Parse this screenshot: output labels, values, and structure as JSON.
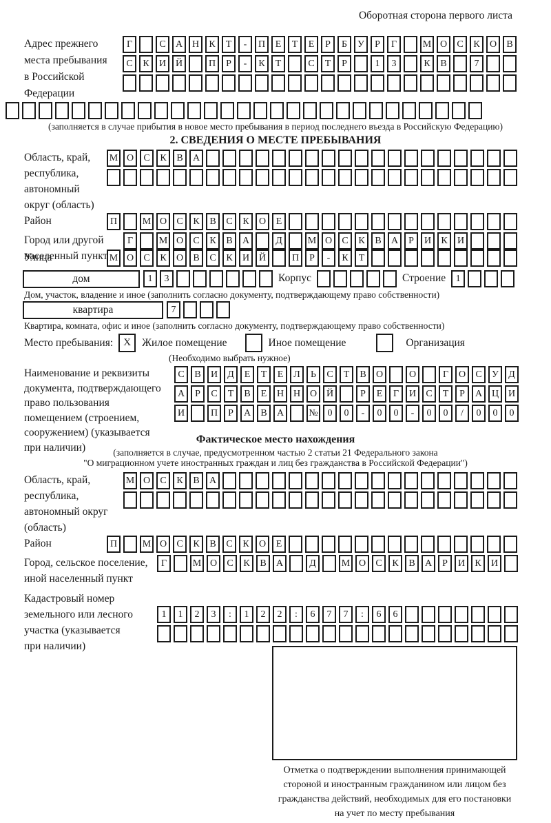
{
  "page": {
    "header_note": "Оборотная сторона первого листа"
  },
  "prev_address": {
    "label": [
      "Адрес прежнего",
      "места пребывания",
      "в Российской",
      "Федерации"
    ],
    "rows": [
      {
        "text": "Г САНКТ-ПЕТЕРБУРГ МОСКОВ",
        "count": 24
      },
      {
        "text": "СКИЙ ПР-КТ СТР 13 КВ 7",
        "count": 24
      },
      {
        "text": "",
        "count": 24
      }
    ],
    "row_full": {
      "text": "",
      "count": 29
    },
    "note": "(заполняется в случае прибытия в новое место пребывания в период последнего въезда в Российскую Федерацию)"
  },
  "section2": {
    "title": "2. СВЕДЕНИЯ О МЕСТЕ ПРЕБЫВАНИЯ",
    "oblast": {
      "label": [
        "Область, край,",
        "республика,",
        "автономный",
        "округ (область)"
      ],
      "rows": [
        {
          "text": "МОСКВА",
          "count": 25
        },
        {
          "text": "",
          "count": 25
        }
      ]
    },
    "raion": {
      "label": "Район",
      "row": {
        "text": "П МОСКВСКОЕ",
        "count": 25
      }
    },
    "gorod": {
      "label": [
        "Город или другой",
        "населенный пункт"
      ],
      "row": {
        "text": "Г МОСКВА Д МОСКВАРИКИ",
        "count": 24
      }
    },
    "ulitsa": {
      "label": "Улица",
      "row": {
        "text": "МОСКОВСКИЙ ПР-КТ",
        "count": 25
      }
    },
    "dom": {
      "label": "дом",
      "row": {
        "text": "13",
        "count": 8
      },
      "korpus_label": "Корпус",
      "korpus_row": {
        "text": "",
        "count": 5
      },
      "stroenie_label": "Строение",
      "stroenie_row": {
        "text": "1",
        "count": 4
      },
      "note": "Дом, участок, владение и иное (заполнить согласно документу, подтверждающему право собственности)"
    },
    "kvartira": {
      "label": "квартира",
      "row": {
        "text": "7",
        "count": 4
      },
      "note": "Квартира, комната, офис и иное (заполнить согласно документу, подтверждающему право собственности)"
    },
    "mesto": {
      "label": "Место пребывания:",
      "options": [
        {
          "label": "Жилое помещение",
          "checked": "X"
        },
        {
          "label": "Иное помещение",
          "checked": ""
        },
        {
          "label": "Организация",
          "checked": ""
        }
      ],
      "note": "(Необходимо выбрать нужное)"
    },
    "document": {
      "label": [
        "Наименование и реквизиты",
        "документа, подтверждающего",
        "право пользования",
        "помещением (строением,",
        "сооружением) (указывается",
        "при наличии)"
      ],
      "rows": [
        {
          "text": "СВИДЕТЕЛЬСТВО О ГОСУД",
          "count": 21
        },
        {
          "text": "АРСТВЕННОЙ РЕГИСТРАЦИ",
          "count": 21
        },
        {
          "text": "И ПРАВА №00-00-00/000",
          "count": 21
        }
      ]
    }
  },
  "actual_location": {
    "title": "Фактическое место нахождения",
    "note1": "(заполняется в случае, предусмотренном частью 2 статьи 21 Федерального закона",
    "note2": "\"О миграционном учете иностранных граждан и лиц без гражданства в Российской Федерации\")",
    "oblast": {
      "label": [
        "Область, край,",
        "республика,",
        "автономный округ",
        "(область)"
      ],
      "rows": [
        {
          "text": "МОСКВА",
          "count": 24
        },
        {
          "text": "",
          "count": 24
        }
      ]
    },
    "raion": {
      "label": "Район",
      "row": {
        "text": "П МОСКВСКОЕ",
        "count": 25
      }
    },
    "gorod": {
      "label": [
        "Город, сельское поселение,",
        "иной населенный пункт"
      ],
      "row": {
        "text": "Г МОСКВА Д МОСКВАРИКИ",
        "count": 22
      }
    },
    "kadastr": {
      "label": [
        "Кадастровый номер",
        "земельного или лесного",
        "участка (указывается",
        "при наличии)"
      ],
      "rows": [
        {
          "text": "1123:122:677:66",
          "count": 22
        },
        {
          "text": "",
          "count": 22
        }
      ]
    },
    "stamp_note": [
      "Отметка о подтверждении выполнения принимающей",
      "стороной и иностранным гражданином или лицом без",
      "гражданства действий, необходимых для его постановки",
      "на учет по месту пребывания"
    ]
  }
}
